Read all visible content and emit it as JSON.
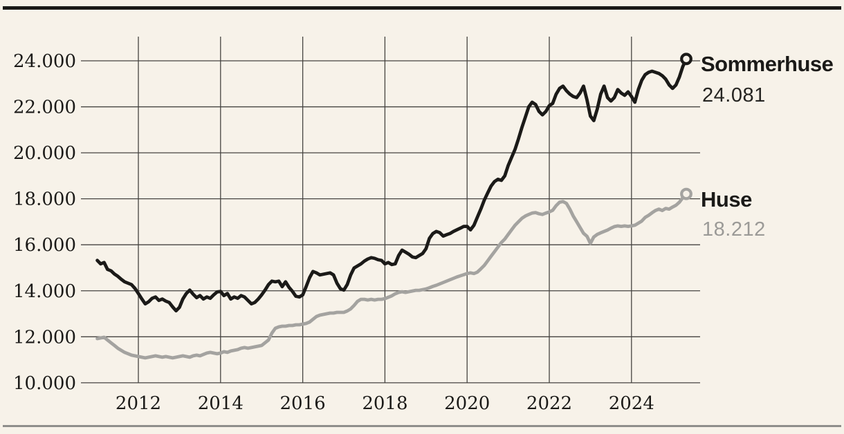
{
  "page": {
    "background": "#f7f2e9",
    "top_rule_color": "#1b1a18",
    "bottom_rule_color": "#8f8e8b"
  },
  "chart_data": {
    "type": "line",
    "title": "",
    "xlabel": "",
    "ylabel": "",
    "grid": true,
    "grid_color": "#454340",
    "legend_position": "right-of-line-end",
    "x_start_year": 2011,
    "x_samples_per_year": 12,
    "xlim": [
      2010.6,
      2025.45
    ],
    "ylim": [
      10000,
      25100
    ],
    "y_ticks": [
      {
        "value": 10000,
        "label": "10.000"
      },
      {
        "value": 12000,
        "label": "12.000"
      },
      {
        "value": 14000,
        "label": "14.000"
      },
      {
        "value": 16000,
        "label": "16.000"
      },
      {
        "value": 18000,
        "label": "18.000"
      },
      {
        "value": 20000,
        "label": "20.000"
      },
      {
        "value": 22000,
        "label": "22.000"
      },
      {
        "value": 24000,
        "label": "24.000"
      }
    ],
    "x_ticks": [
      {
        "value": 2012,
        "label": "2012"
      },
      {
        "value": 2014,
        "label": "2014"
      },
      {
        "value": 2016,
        "label": "2016"
      },
      {
        "value": 2018,
        "label": "2018"
      },
      {
        "value": 2020,
        "label": "2020"
      },
      {
        "value": 2022,
        "label": "2022"
      },
      {
        "value": 2024,
        "label": "2024"
      }
    ],
    "series": [
      {
        "name": "Sommerhuse",
        "display_value": "24.081",
        "color": "#1b1a18",
        "values": [
          15320,
          15170,
          15230,
          14930,
          14870,
          14730,
          14630,
          14500,
          14390,
          14330,
          14270,
          14100,
          13880,
          13650,
          13430,
          13520,
          13670,
          13730,
          13580,
          13640,
          13550,
          13490,
          13300,
          13130,
          13280,
          13640,
          13880,
          14030,
          13850,
          13700,
          13790,
          13640,
          13730,
          13670,
          13820,
          13950,
          13970,
          13790,
          13880,
          13640,
          13730,
          13670,
          13790,
          13730,
          13580,
          13430,
          13490,
          13640,
          13820,
          14030,
          14270,
          14420,
          14390,
          14420,
          14180,
          14390,
          14150,
          13970,
          13760,
          13730,
          13820,
          14180,
          14570,
          14840,
          14780,
          14690,
          14720,
          14750,
          14780,
          14690,
          14330,
          14090,
          14030,
          14270,
          14690,
          14990,
          15080,
          15170,
          15290,
          15380,
          15440,
          15410,
          15350,
          15320,
          15170,
          15230,
          15140,
          15170,
          15530,
          15770,
          15680,
          15590,
          15470,
          15440,
          15530,
          15620,
          15830,
          16280,
          16490,
          16580,
          16530,
          16380,
          16440,
          16490,
          16580,
          16650,
          16720,
          16800,
          16800,
          16650,
          16850,
          17200,
          17550,
          17940,
          18250,
          18550,
          18750,
          18850,
          18800,
          19000,
          19450,
          19800,
          20150,
          20600,
          21100,
          21550,
          22000,
          22200,
          22100,
          21800,
          21650,
          21800,
          22050,
          22150,
          22550,
          22800,
          22900,
          22700,
          22550,
          22450,
          22400,
          22600,
          22900,
          22300,
          21600,
          21400,
          21900,
          22550,
          22900,
          22400,
          22250,
          22400,
          22750,
          22600,
          22500,
          22650,
          22450,
          22200,
          22750,
          23150,
          23400,
          23500,
          23550,
          23500,
          23450,
          23350,
          23200,
          22950,
          22800,
          22950,
          23300,
          23750,
          24081
        ]
      },
      {
        "name": "Huse",
        "display_value": "18.212",
        "color": "#a4a3a0",
        "values": [
          11920,
          11950,
          11980,
          11860,
          11740,
          11620,
          11500,
          11410,
          11320,
          11260,
          11200,
          11170,
          11140,
          11110,
          11080,
          11110,
          11140,
          11170,
          11140,
          11110,
          11140,
          11110,
          11080,
          11110,
          11140,
          11170,
          11140,
          11110,
          11170,
          11200,
          11170,
          11230,
          11290,
          11320,
          11290,
          11260,
          11290,
          11350,
          11320,
          11380,
          11410,
          11440,
          11500,
          11530,
          11500,
          11530,
          11560,
          11590,
          11620,
          11740,
          11860,
          12160,
          12370,
          12430,
          12460,
          12460,
          12490,
          12490,
          12520,
          12520,
          12550,
          12580,
          12640,
          12760,
          12880,
          12940,
          12970,
          13000,
          13030,
          13030,
          13060,
          13060,
          13060,
          13120,
          13210,
          13360,
          13540,
          13630,
          13630,
          13600,
          13630,
          13600,
          13630,
          13630,
          13660,
          13720,
          13780,
          13870,
          13930,
          13960,
          13930,
          13960,
          13990,
          14020,
          14020,
          14050,
          14080,
          14130,
          14190,
          14240,
          14300,
          14360,
          14420,
          14480,
          14540,
          14600,
          14650,
          14700,
          14750,
          14780,
          14750,
          14810,
          14950,
          15100,
          15300,
          15500,
          15700,
          15900,
          16100,
          16250,
          16450,
          16650,
          16850,
          17000,
          17150,
          17250,
          17320,
          17380,
          17400,
          17350,
          17320,
          17380,
          17430,
          17500,
          17700,
          17850,
          17880,
          17800,
          17550,
          17250,
          17000,
          16750,
          16500,
          16370,
          16060,
          16340,
          16450,
          16520,
          16580,
          16640,
          16720,
          16790,
          16820,
          16800,
          16820,
          16800,
          16820,
          16850,
          16940,
          17030,
          17190,
          17280,
          17390,
          17490,
          17550,
          17490,
          17580,
          17550,
          17640,
          17720,
          17850,
          18050,
          18212
        ]
      }
    ]
  }
}
